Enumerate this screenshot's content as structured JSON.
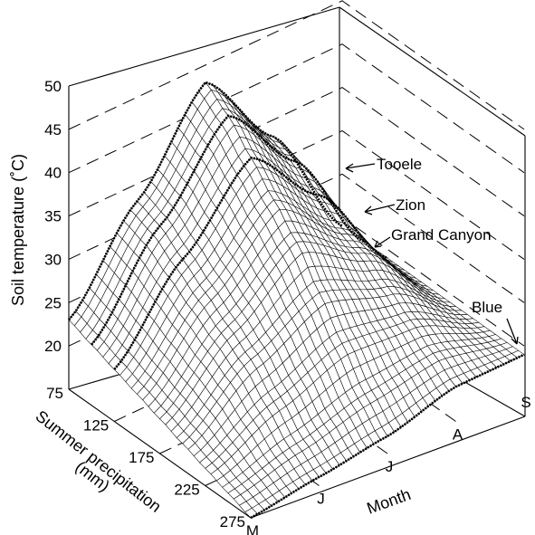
{
  "chart_data": {
    "type": "surface3d",
    "title": "",
    "zlabel": "Soil temperature (˚C)",
    "ylabel": "Summer precipitation",
    "ylabel_unit": "(mm)",
    "xlabel": "Month",
    "zlim": [
      15,
      50
    ],
    "z_ticks": [
      "20",
      "25",
      "30",
      "35",
      "40",
      "45",
      "50"
    ],
    "precip_ticks": [
      "75",
      "125",
      "175",
      "225",
      "275"
    ],
    "precip_range": [
      75,
      275
    ],
    "month_ticks": [
      "M",
      "J",
      "J",
      "A",
      "S"
    ],
    "grid": true,
    "precipitation_mm": [
      75,
      100,
      125,
      150,
      175,
      200,
      225,
      250,
      275
    ],
    "months": [
      "M",
      "J",
      "J",
      "A",
      "S"
    ],
    "soil_temperature_c": [
      [
        23,
        33,
        43,
        33,
        19
      ],
      [
        22,
        32,
        41,
        32,
        19
      ],
      [
        21,
        30,
        38,
        30,
        19
      ],
      [
        20,
        28,
        35,
        28,
        19
      ],
      [
        19,
        26,
        32,
        27,
        19
      ],
      [
        18,
        24,
        28,
        25,
        19
      ],
      [
        17,
        21,
        24,
        23,
        19
      ],
      [
        16,
        18,
        20,
        21,
        19
      ],
      [
        15,
        16,
        17,
        19,
        19
      ]
    ],
    "sites": [
      {
        "name": "Tooele",
        "precipitation_mm": 75
      },
      {
        "name": "Zion",
        "precipitation_mm": 100
      },
      {
        "name": "Grand Canyon",
        "precipitation_mm": 125
      },
      {
        "name": "Blue",
        "precipitation_mm": 275
      }
    ]
  }
}
